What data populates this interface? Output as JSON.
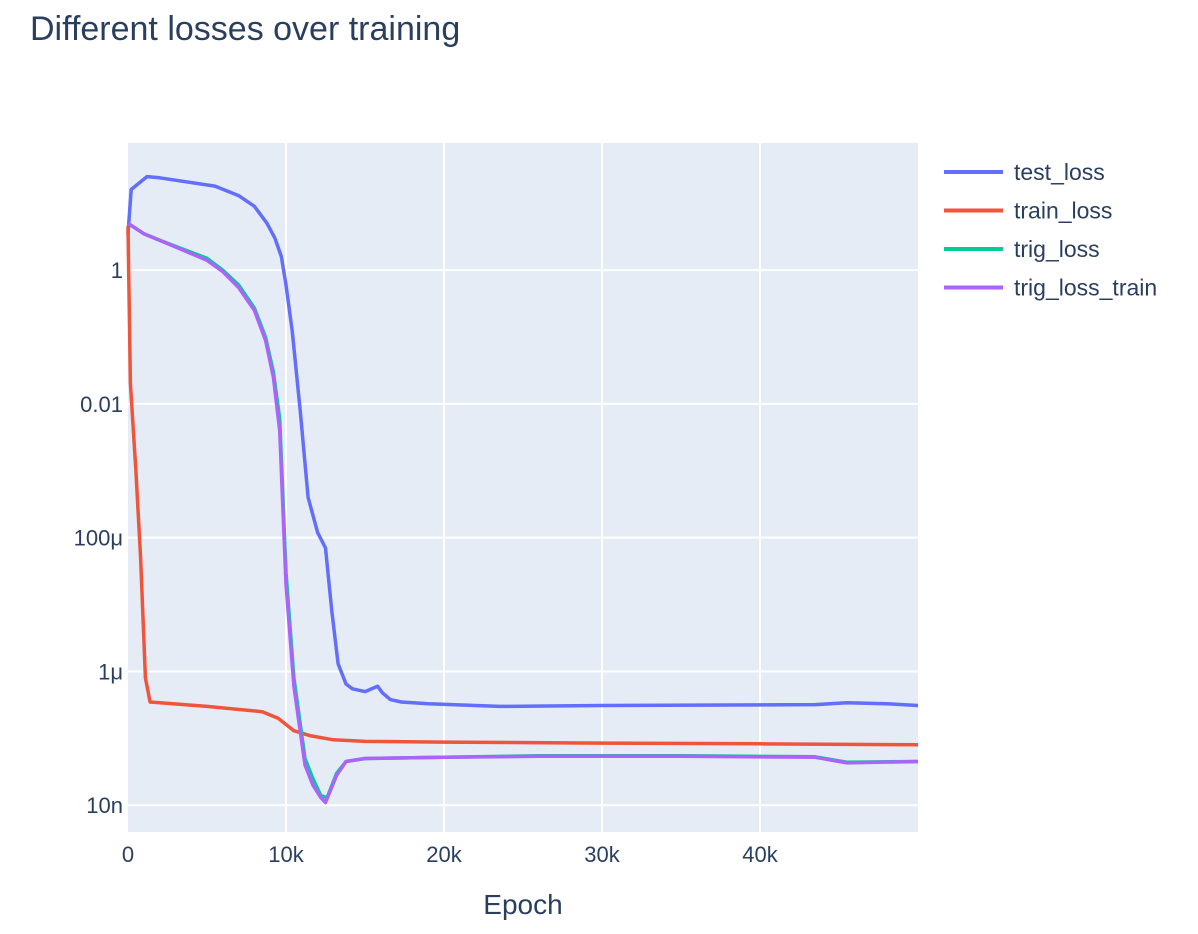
{
  "chart_data": {
    "type": "line",
    "title": "Different losses over training",
    "xlabel": "Epoch",
    "ylabel": "",
    "xlim": [
      0,
      50000
    ],
    "ylim_log10": [
      -8.4,
      1.9
    ],
    "yscale": "log",
    "grid": true,
    "legend_position": "right",
    "x_ticks": [
      {
        "value": 0,
        "label": "0"
      },
      {
        "value": 10000,
        "label": "10k"
      },
      {
        "value": 20000,
        "label": "20k"
      },
      {
        "value": 30000,
        "label": "30k"
      },
      {
        "value": 40000,
        "label": "40k"
      }
    ],
    "y_ticks": [
      {
        "value": 1,
        "label": "1"
      },
      {
        "value": 0.01,
        "label": "0.01"
      },
      {
        "value": 0.0001,
        "label": "100μ"
      },
      {
        "value": 1e-06,
        "label": "1μ"
      },
      {
        "value": 1e-08,
        "label": "10n"
      }
    ],
    "colors": {
      "plot_bg": "#E5ECF6",
      "grid": "#ffffff",
      "test_loss": "#636EFA",
      "train_loss": "#EF553B",
      "trig_loss": "#00CC96",
      "trig_loss_train": "#AB63FA"
    },
    "series": [
      {
        "name": "test_loss",
        "color": "#636EFA",
        "points": [
          [
            0,
            3.5
          ],
          [
            200,
            16
          ],
          [
            1200,
            25
          ],
          [
            2000,
            24
          ],
          [
            5500,
            18
          ],
          [
            7000,
            13
          ],
          [
            8000,
            9
          ],
          [
            8800,
            5
          ],
          [
            9300,
            3
          ],
          [
            9700,
            1.6
          ],
          [
            10000,
            0.6
          ],
          [
            10400,
            0.12
          ],
          [
            10900,
            0.008
          ],
          [
            11400,
            0.0004
          ],
          [
            12000,
            0.00012
          ],
          [
            12500,
            7e-05
          ],
          [
            12900,
            8e-06
          ],
          [
            13300,
            1.3e-06
          ],
          [
            13800,
            6.5e-07
          ],
          [
            14200,
            5.5e-07
          ],
          [
            15000,
            5e-07
          ],
          [
            15800,
            6e-07
          ],
          [
            16100,
            4.8e-07
          ],
          [
            16600,
            3.8e-07
          ],
          [
            17300,
            3.5e-07
          ],
          [
            19000,
            3.3e-07
          ],
          [
            23500,
            3e-07
          ],
          [
            30000,
            3.1e-07
          ],
          [
            43500,
            3.2e-07
          ],
          [
            45500,
            3.4e-07
          ],
          [
            48000,
            3.3e-07
          ],
          [
            50000,
            3.1e-07
          ]
        ]
      },
      {
        "name": "train_loss",
        "color": "#EF553B",
        "points": [
          [
            0,
            4.5
          ],
          [
            150,
            0.02
          ],
          [
            500,
            0.001
          ],
          [
            800,
            5e-05
          ],
          [
            1100,
            8e-07
          ],
          [
            1400,
            3.5e-07
          ],
          [
            5000,
            3e-07
          ],
          [
            8500,
            2.5e-07
          ],
          [
            9500,
            2e-07
          ],
          [
            10500,
            1.3e-07
          ],
          [
            11500,
            1.1e-07
          ],
          [
            13000,
            9.5e-08
          ],
          [
            15000,
            9e-08
          ],
          [
            20000,
            8.8e-08
          ],
          [
            30000,
            8.5e-08
          ],
          [
            40000,
            8.3e-08
          ],
          [
            50000,
            8e-08
          ]
        ]
      },
      {
        "name": "trig_loss",
        "color": "#00CC96",
        "points": [
          [
            0,
            5
          ],
          [
            1000,
            3.5
          ],
          [
            2000,
            2.8
          ],
          [
            5000,
            1.5
          ],
          [
            6000,
            1.0
          ],
          [
            7000,
            0.6
          ],
          [
            8000,
            0.27
          ],
          [
            8700,
            0.1
          ],
          [
            9200,
            0.03
          ],
          [
            9600,
            0.006
          ],
          [
            10000,
            3e-05
          ],
          [
            10500,
            8e-07
          ],
          [
            11200,
            5e-08
          ],
          [
            11700,
            2.5e-08
          ],
          [
            12200,
            1.4e-08
          ],
          [
            12600,
            1.3e-08
          ],
          [
            13200,
            3e-08
          ],
          [
            13800,
            4.5e-08
          ],
          [
            15000,
            5e-08
          ],
          [
            20000,
            5.2e-08
          ],
          [
            26000,
            5.5e-08
          ],
          [
            35000,
            5.5e-08
          ],
          [
            43500,
            5.3e-08
          ],
          [
            45500,
            4.4e-08
          ],
          [
            50000,
            4.5e-08
          ]
        ]
      },
      {
        "name": "trig_loss_train",
        "color": "#AB63FA",
        "points": [
          [
            0,
            5
          ],
          [
            1000,
            3.5
          ],
          [
            2000,
            2.8
          ],
          [
            5000,
            1.4
          ],
          [
            6000,
            0.95
          ],
          [
            7000,
            0.55
          ],
          [
            8000,
            0.25
          ],
          [
            8700,
            0.09
          ],
          [
            9200,
            0.025
          ],
          [
            9600,
            0.004
          ],
          [
            10000,
            2e-05
          ],
          [
            10500,
            6e-07
          ],
          [
            11200,
            4e-08
          ],
          [
            11700,
            2e-08
          ],
          [
            12200,
            1.3e-08
          ],
          [
            12500,
            1.1e-08
          ],
          [
            13200,
            2.8e-08
          ],
          [
            13800,
            4.5e-08
          ],
          [
            15000,
            5e-08
          ],
          [
            20000,
            5.2e-08
          ],
          [
            26000,
            5.4e-08
          ],
          [
            35000,
            5.4e-08
          ],
          [
            43500,
            5.2e-08
          ],
          [
            45500,
            4.3e-08
          ],
          [
            50000,
            4.5e-08
          ]
        ]
      }
    ]
  }
}
